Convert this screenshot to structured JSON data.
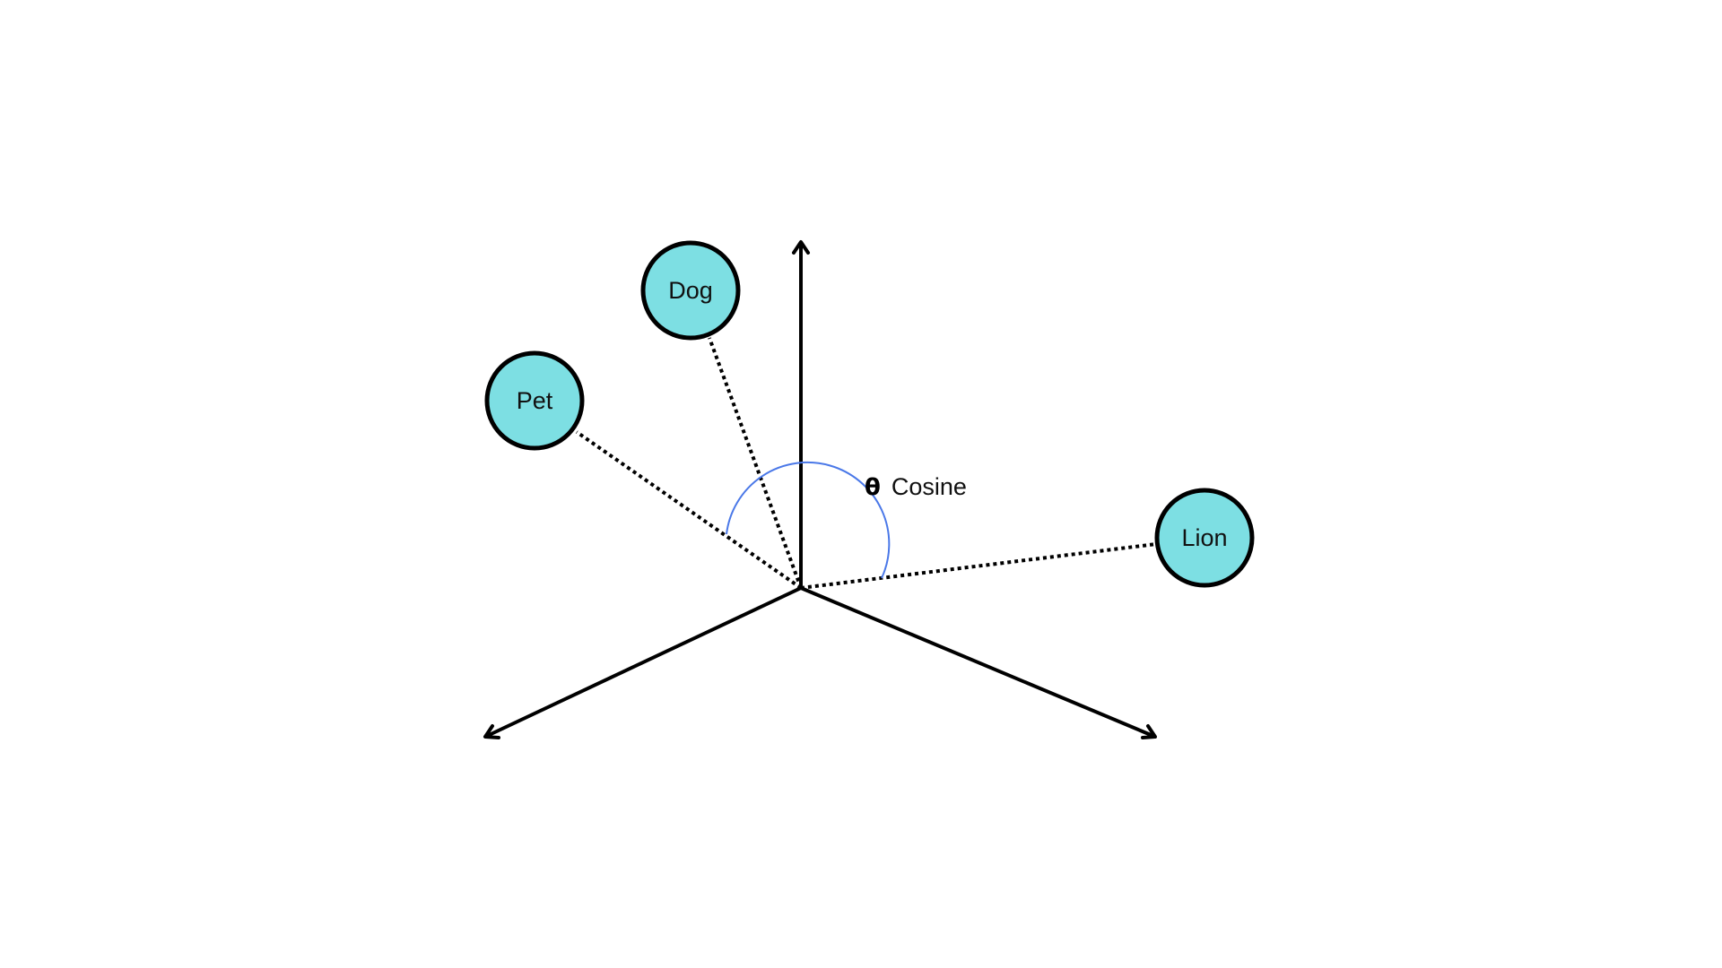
{
  "colors": {
    "node_fill": "#7ddfe3",
    "node_stroke": "#000000",
    "arc": "#4a78e8",
    "axis": "#000000",
    "background": "#ffffff"
  },
  "axes": {
    "count": 3,
    "names": [
      "vertical-axis",
      "lower-left-axis",
      "lower-right-axis"
    ]
  },
  "nodes": [
    {
      "id": "dog",
      "label": "Dog"
    },
    {
      "id": "pet",
      "label": "Pet"
    },
    {
      "id": "lion",
      "label": "Lion"
    }
  ],
  "angle": {
    "symbol": "θ",
    "label": "Cosine",
    "between": [
      "pet",
      "lion"
    ]
  }
}
